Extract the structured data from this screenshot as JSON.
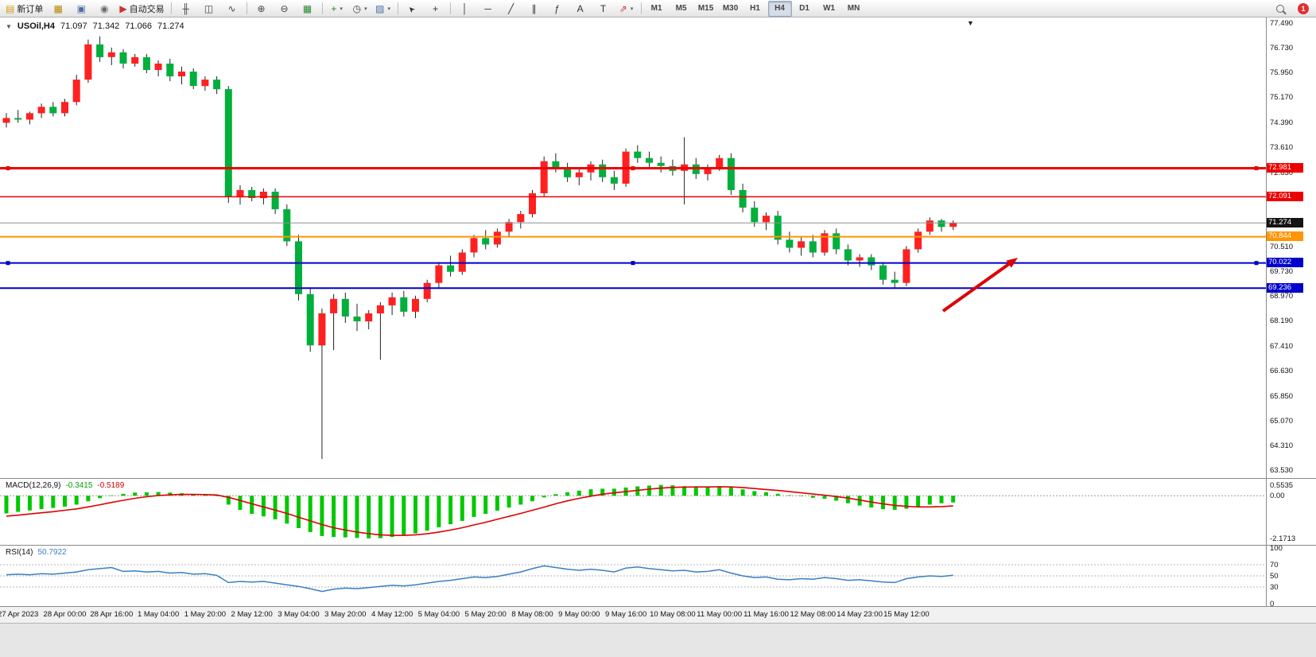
{
  "icons": {
    "one_click_triangle": "▼",
    "shift_marker": "▼",
    "caret": "▾"
  },
  "toolbar": {
    "buttons": [
      {
        "name": "new-order-button",
        "glyph": "▤",
        "color": "#d4a017",
        "label": "新订单"
      },
      {
        "name": "market-watch-button",
        "glyph": "▦",
        "color": "#b8860b"
      },
      {
        "name": "data-window-button",
        "glyph": "▣",
        "color": "#4a6fa5"
      },
      {
        "name": "navigator-button",
        "glyph": "◉",
        "color": "#6b6b6b"
      },
      {
        "name": "autotrading-button",
        "glyph": "▶",
        "color": "#c93131",
        "label": "自动交易"
      },
      {
        "sep": true
      },
      {
        "name": "bar-chart-button",
        "glyph": "╫",
        "color": "#444444"
      },
      {
        "name": "candlestick-chart-button",
        "glyph": "◫",
        "color": "#444444"
      },
      {
        "name": "line-chart-button",
        "glyph": "∿",
        "color": "#444444"
      },
      {
        "sep": true
      },
      {
        "name": "zoom-in-button",
        "glyph": "⊕",
        "color": "#444444"
      },
      {
        "name": "zoom-out-button",
        "glyph": "⊖",
        "color": "#444444"
      },
      {
        "name": "grid-button",
        "glyph": "▦",
        "color": "#2e8b2e"
      },
      {
        "sep": true
      },
      {
        "name": "indicators-button",
        "glyph": "+",
        "color": "#1e8f1e",
        "caret": true
      },
      {
        "name": "periods-button",
        "glyph": "◷",
        "color": "#444444",
        "caret": true
      },
      {
        "name": "templates-button",
        "glyph": "▨",
        "color": "#4a6fa5",
        "caret": true
      },
      {
        "sep": true
      },
      {
        "name": "cursor-button",
        "glyph": "➤",
        "color": "#333333",
        "rotate": true
      },
      {
        "name": "crosshair-button",
        "glyph": "+",
        "color": "#333333"
      },
      {
        "sep": true
      },
      {
        "name": "vertical-line-button",
        "glyph": "│",
        "color": "#333333"
      },
      {
        "name": "horizontal-line-button",
        "glyph": "─",
        "color": "#333333"
      },
      {
        "name": "trendline-button",
        "glyph": "╱",
        "color": "#333333"
      },
      {
        "name": "equidistant-channel-button",
        "glyph": "∥",
        "color": "#333333"
      },
      {
        "name": "fibonacci-button",
        "glyph": "ƒ",
        "color": "#333333"
      },
      {
        "name": "text-button",
        "glyph": "A",
        "color": "#333333"
      },
      {
        "name": "text-label-button",
        "glyph": "T",
        "color": "#333333"
      },
      {
        "name": "arrows-button",
        "glyph": "⇗",
        "color": "#c93131",
        "caret": true
      },
      {
        "sep": true
      }
    ],
    "timeframes": [
      "M1",
      "M5",
      "M15",
      "M30",
      "H1",
      "H4",
      "D1",
      "W1",
      "MN"
    ],
    "active_timeframe": "H4",
    "notification_count": "1"
  },
  "chart_data": {
    "type": "candlestick",
    "symbol": "USOil",
    "period": "H4",
    "title": {
      "symbol_period": "USOil,H4",
      "open": "71.097",
      "high": "71.342",
      "low": "71.066",
      "close": "71.274"
    },
    "colors": {
      "up": "#ff2020",
      "down": "#00af3c",
      "wick": "#222222"
    },
    "price_axis": {
      "min": 63.45,
      "max": 77.49,
      "labels": [
        "77.490",
        "76.730",
        "75.950",
        "75.170",
        "74.390",
        "73.610",
        "72.830",
        "70.510",
        "69.730",
        "68.970",
        "68.190",
        "67.410",
        "66.630",
        "65.850",
        "65.070",
        "64.310",
        "63.530"
      ]
    },
    "hlines": [
      {
        "price": "72.981",
        "value": 72.981,
        "color": "#ee0000",
        "width": 3,
        "handles": true
      },
      {
        "price": "72.091",
        "value": 72.091,
        "color": "#ee0000",
        "width": 1.5
      },
      {
        "price": "71.274",
        "value": 71.274,
        "color": "#909090",
        "width": 1,
        "tag_bg": "#141414"
      },
      {
        "price": "70.844",
        "value": 70.844,
        "color": "#ff9500",
        "width": 2
      },
      {
        "price": "70.022",
        "value": 70.022,
        "color": "#0000cc",
        "width": 2,
        "handles": true
      },
      {
        "price": "69.236",
        "value": 69.236,
        "color": "#0000cc",
        "width": 2
      }
    ],
    "arrow": {
      "from": [
        1186,
        369
      ],
      "to": [
        1280,
        302
      ],
      "color": "#dd0000"
    },
    "candles": [
      [
        74.4,
        74.7,
        74.25,
        74.55
      ],
      [
        74.55,
        74.8,
        74.4,
        74.5
      ],
      [
        74.5,
        74.75,
        74.35,
        74.7
      ],
      [
        74.7,
        75.0,
        74.55,
        74.9
      ],
      [
        74.9,
        75.05,
        74.6,
        74.7
      ],
      [
        74.7,
        75.15,
        74.6,
        75.05
      ],
      [
        75.05,
        75.9,
        74.95,
        75.75
      ],
      [
        75.75,
        77.0,
        75.65,
        76.85
      ],
      [
        76.85,
        77.1,
        76.3,
        76.45
      ],
      [
        76.45,
        76.75,
        76.2,
        76.6
      ],
      [
        76.6,
        76.7,
        76.1,
        76.25
      ],
      [
        76.25,
        76.55,
        76.15,
        76.45
      ],
      [
        76.45,
        76.55,
        75.95,
        76.05
      ],
      [
        76.05,
        76.35,
        75.85,
        76.25
      ],
      [
        76.25,
        76.4,
        75.7,
        75.85
      ],
      [
        75.85,
        76.15,
        75.6,
        76.0
      ],
      [
        76.0,
        76.1,
        75.45,
        75.55
      ],
      [
        75.55,
        75.85,
        75.4,
        75.75
      ],
      [
        75.75,
        75.85,
        75.3,
        75.45
      ],
      [
        75.45,
        75.55,
        71.9,
        72.1
      ],
      [
        72.1,
        72.45,
        71.85,
        72.3
      ],
      [
        72.3,
        72.4,
        71.95,
        72.05
      ],
      [
        72.05,
        72.35,
        71.85,
        72.25
      ],
      [
        72.25,
        72.35,
        71.55,
        71.7
      ],
      [
        71.7,
        71.85,
        70.55,
        70.7
      ],
      [
        70.7,
        70.9,
        68.85,
        69.05
      ],
      [
        69.05,
        69.25,
        67.25,
        67.45
      ],
      [
        67.45,
        68.6,
        63.9,
        68.45
      ],
      [
        68.45,
        69.05,
        67.3,
        68.9
      ],
      [
        68.9,
        69.1,
        68.15,
        68.35
      ],
      [
        68.35,
        68.75,
        67.9,
        68.2
      ],
      [
        68.2,
        68.55,
        67.95,
        68.45
      ],
      [
        68.45,
        68.8,
        67.0,
        68.7
      ],
      [
        68.7,
        69.1,
        68.4,
        68.95
      ],
      [
        68.95,
        69.15,
        68.35,
        68.5
      ],
      [
        68.5,
        69.0,
        68.3,
        68.9
      ],
      [
        68.9,
        69.5,
        68.8,
        69.4
      ],
      [
        69.4,
        70.05,
        69.25,
        69.95
      ],
      [
        69.95,
        70.25,
        69.6,
        69.75
      ],
      [
        69.75,
        70.45,
        69.65,
        70.35
      ],
      [
        70.35,
        70.9,
        70.2,
        70.8
      ],
      [
        70.8,
        71.05,
        70.45,
        70.6
      ],
      [
        70.6,
        71.1,
        70.5,
        71.0
      ],
      [
        71.0,
        71.4,
        70.85,
        71.3
      ],
      [
        71.3,
        71.65,
        71.1,
        71.55
      ],
      [
        71.55,
        72.3,
        71.45,
        72.2
      ],
      [
        72.2,
        73.35,
        72.1,
        73.2
      ],
      [
        73.2,
        73.45,
        72.85,
        73.0
      ],
      [
        73.0,
        73.15,
        72.55,
        72.7
      ],
      [
        72.7,
        72.95,
        72.45,
        72.85
      ],
      [
        72.85,
        73.2,
        72.6,
        73.1
      ],
      [
        73.1,
        73.25,
        72.55,
        72.7
      ],
      [
        72.7,
        72.9,
        72.3,
        72.5
      ],
      [
        72.5,
        73.6,
        72.4,
        73.5
      ],
      [
        73.5,
        73.7,
        73.15,
        73.3
      ],
      [
        73.3,
        73.5,
        73.0,
        73.15
      ],
      [
        73.15,
        73.35,
        72.85,
        73.05
      ],
      [
        73.05,
        73.25,
        72.75,
        72.9
      ],
      [
        72.9,
        73.95,
        71.85,
        73.1
      ],
      [
        73.1,
        73.3,
        72.65,
        72.8
      ],
      [
        72.8,
        73.1,
        72.6,
        73.0
      ],
      [
        73.0,
        73.4,
        72.9,
        73.3
      ],
      [
        73.3,
        73.45,
        72.15,
        72.3
      ],
      [
        72.3,
        72.5,
        71.6,
        71.75
      ],
      [
        71.75,
        71.95,
        71.15,
        71.3
      ],
      [
        71.3,
        71.6,
        71.05,
        71.5
      ],
      [
        71.5,
        71.65,
        70.6,
        70.75
      ],
      [
        70.75,
        71.0,
        70.35,
        70.5
      ],
      [
        70.5,
        70.85,
        70.25,
        70.7
      ],
      [
        70.7,
        70.9,
        70.2,
        70.35
      ],
      [
        70.35,
        71.05,
        70.25,
        70.95
      ],
      [
        70.95,
        71.1,
        70.3,
        70.45
      ],
      [
        70.45,
        70.6,
        69.95,
        70.1
      ],
      [
        70.1,
        70.3,
        69.9,
        70.2
      ],
      [
        70.2,
        70.3,
        69.8,
        69.95
      ],
      [
        69.95,
        70.05,
        69.35,
        69.5
      ],
      [
        69.5,
        69.75,
        69.25,
        69.4
      ],
      [
        69.4,
        70.55,
        69.3,
        70.45
      ],
      [
        70.45,
        71.1,
        70.35,
        71.0
      ],
      [
        71.0,
        71.45,
        70.9,
        71.35
      ],
      [
        71.35,
        71.4,
        71.0,
        71.15
      ],
      [
        71.15,
        71.35,
        71.05,
        71.27
      ]
    ],
    "time_axis": [
      "27 Apr 2023",
      "28 Apr 00:00",
      "28 Apr 16:00",
      "1 May 04:00",
      "1 May 20:00",
      "2 May 12:00",
      "3 May 04:00",
      "3 May 20:00",
      "4 May 12:00",
      "5 May 04:00",
      "5 May 20:00",
      "8 May 08:00",
      "9 May 00:00",
      "9 May 16:00",
      "10 May 08:00",
      "11 May 00:00",
      "11 May 16:00",
      "12 May 08:00",
      "14 May 23:00",
      "15 May 12:00"
    ],
    "indicators": [
      {
        "type": "MACD",
        "label": "MACD(12,26,9)",
        "values_text": [
          "-0.3415",
          "-0.5189"
        ],
        "hist_color": "#00c800",
        "signal_color": "#e00000",
        "axis_labels": [
          "0.5535",
          "0.00",
          "-2.1713"
        ],
        "axis_values": [
          0.5535,
          0,
          -2.1713
        ],
        "histogram": [
          -0.9,
          -0.82,
          -0.75,
          -0.68,
          -0.62,
          -0.55,
          -0.45,
          -0.28,
          -0.12,
          0.02,
          0.1,
          0.16,
          0.18,
          0.19,
          0.16,
          0.13,
          0.08,
          0.04,
          -0.02,
          -0.45,
          -0.72,
          -0.92,
          -1.05,
          -1.2,
          -1.42,
          -1.65,
          -1.85,
          -2.05,
          -2.1,
          -2.12,
          -2.15,
          -2.17,
          -2.16,
          -2.1,
          -2.02,
          -1.92,
          -1.78,
          -1.6,
          -1.45,
          -1.28,
          -1.08,
          -0.92,
          -0.76,
          -0.6,
          -0.45,
          -0.28,
          -0.08,
          0.08,
          0.18,
          0.26,
          0.33,
          0.36,
          0.36,
          0.42,
          0.48,
          0.52,
          0.55,
          0.53,
          0.49,
          0.47,
          0.46,
          0.47,
          0.42,
          0.33,
          0.24,
          0.18,
          0.1,
          0.03,
          -0.02,
          -0.1,
          -0.15,
          -0.25,
          -0.38,
          -0.5,
          -0.6,
          -0.68,
          -0.72,
          -0.66,
          -0.55,
          -0.45,
          -0.38,
          -0.34
        ],
        "signal": [
          -1.04,
          -0.99,
          -0.93,
          -0.87,
          -0.81,
          -0.74,
          -0.67,
          -0.57,
          -0.46,
          -0.34,
          -0.23,
          -0.13,
          -0.05,
          0.01,
          0.05,
          0.07,
          0.07,
          0.06,
          0.04,
          -0.08,
          -0.24,
          -0.41,
          -0.57,
          -0.73,
          -0.9,
          -1.09,
          -1.28,
          -1.47,
          -1.63,
          -1.75,
          -1.85,
          -1.93,
          -1.99,
          -2.02,
          -2.02,
          -1.99,
          -1.94,
          -1.85,
          -1.75,
          -1.63,
          -1.49,
          -1.35,
          -1.2,
          -1.05,
          -0.9,
          -0.74,
          -0.58,
          -0.41,
          -0.26,
          -0.13,
          -0.02,
          0.08,
          0.15,
          0.21,
          0.28,
          0.34,
          0.39,
          0.43,
          0.44,
          0.45,
          0.45,
          0.46,
          0.45,
          0.42,
          0.37,
          0.32,
          0.27,
          0.21,
          0.15,
          0.09,
          0.03,
          -0.04,
          -0.12,
          -0.22,
          -0.32,
          -0.41,
          -0.49,
          -0.54,
          -0.57,
          -0.57,
          -0.55,
          -0.52
        ]
      },
      {
        "type": "RSI",
        "label": "RSI(14)",
        "value_text": "50.7922",
        "line_color": "#3a7fc1",
        "levels": [
          70,
          50,
          30
        ],
        "axis_labels": [
          "100",
          "70",
          "50",
          "30",
          "0"
        ],
        "range": [
          0,
          100
        ],
        "values": [
          52,
          53,
          52,
          54,
          53,
          55,
          57,
          61,
          63,
          65,
          58,
          59,
          57,
          58,
          55,
          56,
          53,
          54,
          51,
          38,
          40,
          39,
          40,
          37,
          34,
          31,
          27,
          22,
          26,
          28,
          27,
          29,
          31,
          33,
          32,
          34,
          37,
          40,
          42,
          45,
          48,
          47,
          49,
          53,
          57,
          63,
          68,
          65,
          62,
          60,
          62,
          60,
          57,
          64,
          66,
          63,
          61,
          59,
          60,
          57,
          58,
          61,
          55,
          50,
          47,
          48,
          44,
          43,
          45,
          44,
          47,
          45,
          42,
          43,
          41,
          39,
          38,
          45,
          48,
          50,
          49,
          51
        ]
      }
    ]
  }
}
